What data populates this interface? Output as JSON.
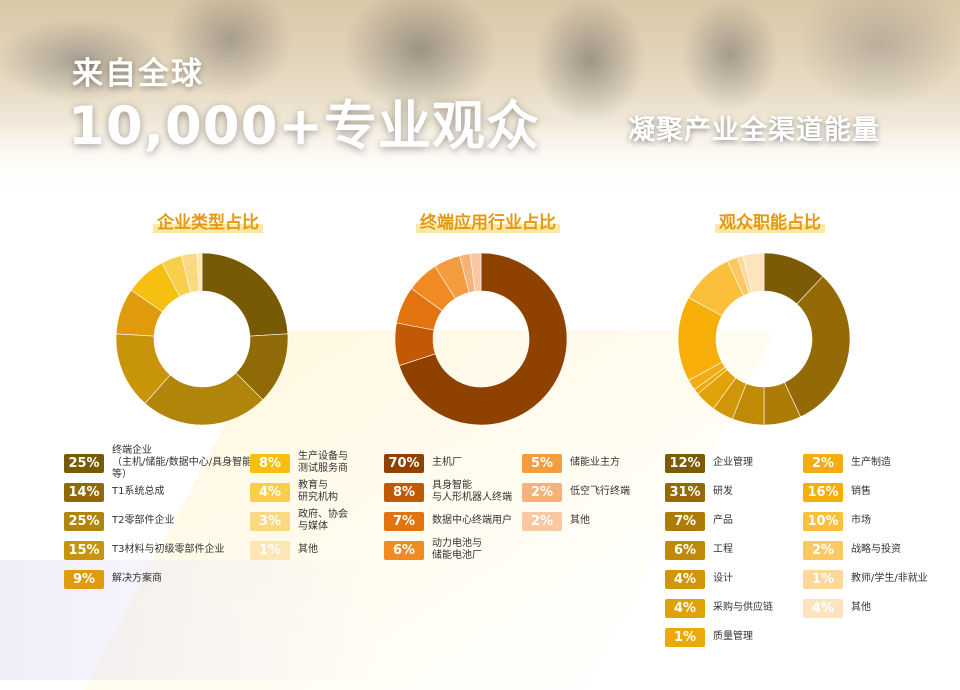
{
  "hero": {
    "line1": "来自全球",
    "line2": "10,000+专业观众",
    "right": "凝聚产业全渠道能量"
  },
  "chart_data": [
    {
      "type": "pie",
      "title": "企业类型占比",
      "categories": [
        "终端企业\n（主机/储能/数据中心/具身智能等）",
        "T1系统总成",
        "T2零部件企业",
        "T3材料与初级零部件企业",
        "解决方案商",
        "生产设备与\n测试服务商",
        "教育与\n研究机构",
        "政府、协会\n与媒体",
        "其他"
      ],
      "values": [
        25,
        14,
        25,
        15,
        9,
        8,
        4,
        3,
        1
      ],
      "value_labels": [
        "25%",
        "14%",
        "25%",
        "15%",
        "9%",
        "8%",
        "4%",
        "3%",
        "1%"
      ],
      "colors": [
        "#785a06",
        "#8f6a07",
        "#b0850a",
        "#c8940a",
        "#df9b0c",
        "#f7bf10",
        "#f9ce4a",
        "#fbd983",
        "#fde6b3"
      ]
    },
    {
      "type": "pie",
      "title": "终端应用行业占比",
      "categories": [
        "主机厂",
        "具身智能\n与人形机器人终端",
        "数据中心终端用户",
        "动力电池与\n储能电池厂",
        "储能业主方",
        "低空飞行终端",
        "其他"
      ],
      "values": [
        70,
        8,
        7,
        6,
        5,
        2,
        2
      ],
      "value_labels": [
        "70%",
        "8%",
        "7%",
        "6%",
        "5%",
        "2%",
        "2%"
      ],
      "colors": [
        "#8f4200",
        "#c25a05",
        "#e3730e",
        "#ef8b22",
        "#f39c40",
        "#f6b278",
        "#f9c7a1"
      ]
    },
    {
      "type": "pie",
      "title": "观众职能占比",
      "categories": [
        "企业管理",
        "研发",
        "产品",
        "工程",
        "设计",
        "采购与供应链",
        "质量管理",
        "生产制造",
        "销售",
        "市场",
        "战略与投资",
        "教师/学生/非就业",
        "其他"
      ],
      "values": [
        12,
        31,
        7,
        6,
        4,
        4,
        1,
        2,
        16,
        10,
        2,
        1,
        4
      ],
      "value_labels": [
        "12%",
        "31%",
        "7%",
        "6%",
        "4%",
        "4%",
        "1%",
        "2%",
        "16%",
        "10%",
        "2%",
        "1%",
        "4%"
      ],
      "colors": [
        "#7c5a06",
        "#946a06",
        "#ad7c07",
        "#c08a07",
        "#d09607",
        "#e0a206",
        "#eda90a",
        "#f2ad12",
        "#f8ae08",
        "#fbbf3c",
        "#fcc862",
        "#fdd89a",
        "#fde4bf"
      ]
    }
  ]
}
